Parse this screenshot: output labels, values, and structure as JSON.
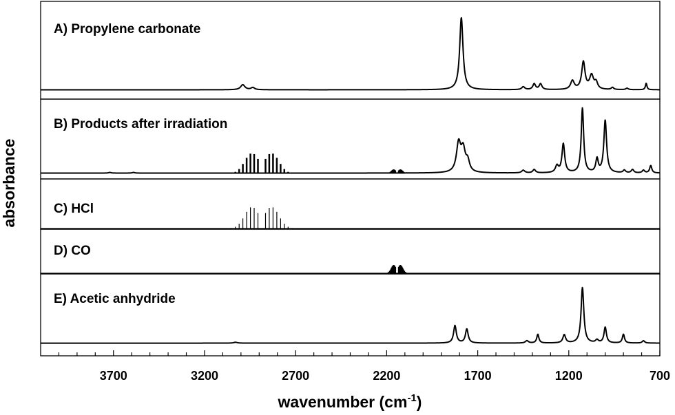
{
  "chart_data": {
    "type": "line",
    "xlabel": "wavenumber (cm",
    "xlabel_sup": "-1",
    "xlabel_close": ")",
    "ylabel": "absorbance",
    "xlim": [
      4100,
      700
    ],
    "x_reversed": true,
    "x_ticks": [
      3700,
      3200,
      2700,
      2200,
      1700,
      1200,
      700
    ],
    "x_tick_labels": [
      "3700",
      "3200",
      "2700",
      "2200",
      "1700",
      "1200",
      "700"
    ],
    "minor_tick_step": 100,
    "grid": false,
    "legend": "none",
    "panels": [
      {
        "label": "A) Propylene carbonate",
        "ymax": 1.0,
        "baseline": 0.005,
        "peaks": [
          {
            "x": 2990,
            "h": 0.07,
            "w": 14
          },
          {
            "x": 2935,
            "h": 0.03,
            "w": 12
          },
          {
            "x": 1790,
            "h": 1.0,
            "w": 11
          },
          {
            "x": 1450,
            "h": 0.04,
            "w": 10
          },
          {
            "x": 1390,
            "h": 0.08,
            "w": 9
          },
          {
            "x": 1355,
            "h": 0.08,
            "w": 9
          },
          {
            "x": 1180,
            "h": 0.12,
            "w": 12
          },
          {
            "x": 1120,
            "h": 0.38,
            "w": 11
          },
          {
            "x": 1075,
            "h": 0.19,
            "w": 13
          },
          {
            "x": 1050,
            "h": 0.09,
            "w": 10
          },
          {
            "x": 960,
            "h": 0.03,
            "w": 8
          },
          {
            "x": 880,
            "h": 0.02,
            "w": 8
          },
          {
            "x": 775,
            "h": 0.09,
            "w": 5
          }
        ],
        "comb": []
      },
      {
        "label": "B) Products after irradiation",
        "ymax": 1.0,
        "baseline": 0.005,
        "peaks": [
          {
            "x": 3720,
            "h": 0.01,
            "w": 8
          },
          {
            "x": 3590,
            "h": 0.01,
            "w": 8
          },
          {
            "x": 1805,
            "h": 0.42,
            "w": 14
          },
          {
            "x": 1780,
            "h": 0.32,
            "w": 14
          },
          {
            "x": 1755,
            "h": 0.15,
            "w": 12
          },
          {
            "x": 1450,
            "h": 0.04,
            "w": 10
          },
          {
            "x": 1390,
            "h": 0.05,
            "w": 9
          },
          {
            "x": 1230,
            "h": 0.43,
            "w": 9
          },
          {
            "x": 1265,
            "h": 0.1,
            "w": 10
          },
          {
            "x": 1125,
            "h": 0.96,
            "w": 8
          },
          {
            "x": 1045,
            "h": 0.2,
            "w": 8
          },
          {
            "x": 1000,
            "h": 0.78,
            "w": 9
          },
          {
            "x": 895,
            "h": 0.04,
            "w": 8
          },
          {
            "x": 850,
            "h": 0.05,
            "w": 8
          },
          {
            "x": 790,
            "h": 0.04,
            "w": 8
          },
          {
            "x": 750,
            "h": 0.11,
            "w": 7
          }
        ],
        "comb": [
          {
            "center": 2886,
            "spacing": 20.7,
            "amp": 0.3,
            "sigma": 90,
            "gap": 1,
            "min": 2630,
            "max": 3100,
            "width": 2.5
          },
          {
            "center": 2143,
            "spacing": 3.8,
            "amp": 0.06,
            "sigma": 32,
            "gap": 2,
            "min": 2070,
            "max": 2220,
            "width": 1.4
          }
        ]
      },
      {
        "label": "C) HCl",
        "ymax": 1.0,
        "baseline": 0.0,
        "peaks": [],
        "comb": [
          {
            "center": 2886,
            "spacing": 20.7,
            "amp": 0.95,
            "sigma": 90,
            "gap": 1,
            "min": 2630,
            "max": 3100,
            "width": 1.2
          }
        ]
      },
      {
        "label": "D) CO",
        "ymax": 1.0,
        "baseline": 0.0,
        "peaks": [],
        "comb": [
          {
            "center": 2143,
            "spacing": 3.8,
            "amp": 0.6,
            "sigma": 32,
            "gap": 2,
            "min": 2070,
            "max": 2220,
            "width": 1.4
          }
        ]
      },
      {
        "label": "E) Acetic anhydride",
        "ymax": 1.0,
        "baseline": 0.005,
        "peaks": [
          {
            "x": 3030,
            "h": 0.015,
            "w": 12
          },
          {
            "x": 1825,
            "h": 0.3,
            "w": 9
          },
          {
            "x": 1760,
            "h": 0.24,
            "w": 9
          },
          {
            "x": 1430,
            "h": 0.04,
            "w": 10
          },
          {
            "x": 1370,
            "h": 0.15,
            "w": 7
          },
          {
            "x": 1225,
            "h": 0.14,
            "w": 9
          },
          {
            "x": 1125,
            "h": 0.95,
            "w": 9
          },
          {
            "x": 1045,
            "h": 0.05,
            "w": 9
          },
          {
            "x": 1000,
            "h": 0.27,
            "w": 8
          },
          {
            "x": 900,
            "h": 0.15,
            "w": 7
          },
          {
            "x": 790,
            "h": 0.04,
            "w": 8
          }
        ],
        "comb": []
      }
    ]
  }
}
